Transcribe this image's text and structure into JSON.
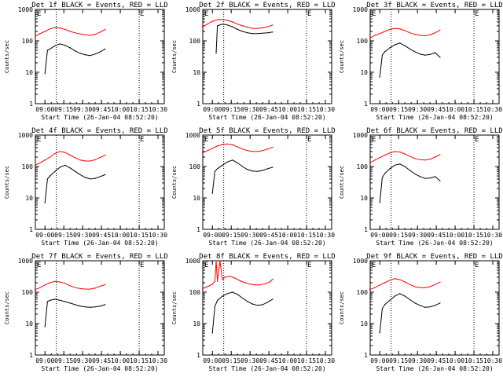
{
  "colors": {
    "events": "#000000",
    "lld": "#ff0000",
    "vline": "#000000"
  },
  "chart_data": [
    {
      "type": "line",
      "title": "Det 1f BLACK = Events, RED = LLD",
      "xlabel": "Start Time (26-Jan-04 08:52:20)",
      "ylabel": "Counts/sec",
      "yscale": "log",
      "ylim": [
        1,
        1000
      ],
      "xticks": [
        "09:00",
        "09:15",
        "09:30",
        "09:45",
        "10:00",
        "10:15",
        "10:30"
      ],
      "yticks": [
        "1",
        "10",
        "100",
        "1000"
      ],
      "flag": "E",
      "dotted_lines_x": [
        "09:09",
        "10:15"
      ],
      "series": [
        {
          "name": "LLD",
          "color": "red",
          "x": [
            "08:52",
            "08:56",
            "09:00",
            "09:04",
            "09:08",
            "09:12",
            "09:16",
            "09:20",
            "09:24",
            "09:28",
            "09:32",
            "09:36",
            "09:40",
            "09:44",
            "09:48"
          ],
          "y": [
            140,
            170,
            200,
            240,
            265,
            255,
            230,
            200,
            180,
            165,
            155,
            150,
            160,
            190,
            230
          ]
        },
        {
          "name": "Events",
          "color": "black",
          "t0": "09:00",
          "x": [
            "09:00",
            "09:02",
            "09:04",
            "09:08",
            "09:12",
            "09:16",
            "09:20",
            "09:24",
            "09:28",
            "09:32",
            "09:36",
            "09:40",
            "09:44",
            "09:48"
          ],
          "y": [
            9,
            50,
            55,
            70,
            80,
            72,
            60,
            48,
            40,
            36,
            34,
            38,
            45,
            55
          ]
        }
      ]
    },
    {
      "type": "line",
      "title": "Det 2f BLACK = Events, RED = LLD",
      "xlabel": "Start Time (26-Jan-04 08:52:20)",
      "ylabel": "Counts/sec",
      "yscale": "log",
      "ylim": [
        1,
        1000
      ],
      "xticks": [
        "09:00",
        "09:15",
        "09:30",
        "09:45",
        "10:00",
        "10:15",
        "10:30"
      ],
      "yticks": [
        "1",
        "10",
        "100",
        "1000"
      ],
      "flag": "E",
      "dotted_lines_x": [
        "09:09",
        "10:15"
      ],
      "series": [
        {
          "name": "LLD",
          "color": "red",
          "x": [
            "08:52",
            "08:56",
            "09:00",
            "09:04",
            "09:08",
            "09:12",
            "09:16",
            "09:20",
            "09:24",
            "09:28",
            "09:32",
            "09:36",
            "09:40",
            "09:44",
            "09:48"
          ],
          "y": [
            280,
            340,
            420,
            470,
            480,
            450,
            400,
            340,
            300,
            270,
            250,
            250,
            260,
            280,
            320
          ]
        },
        {
          "name": "Events",
          "color": "black",
          "t0": "09:03",
          "x": [
            "09:03",
            "09:04",
            "09:08",
            "09:12",
            "09:16",
            "09:20",
            "09:24",
            "09:28",
            "09:32",
            "09:36",
            "09:40",
            "09:44",
            "09:48"
          ],
          "y": [
            40,
            300,
            340,
            320,
            280,
            230,
            200,
            180,
            170,
            170,
            175,
            180,
            190
          ]
        }
      ]
    },
    {
      "type": "line",
      "title": "Det 3f BLACK = Events, RED = LLD",
      "xlabel": "Start Time (26-Jan-04 08:52:20)",
      "ylabel": "Counts/sec",
      "yscale": "log",
      "ylim": [
        1,
        1000
      ],
      "xticks": [
        "09:00",
        "09:15",
        "09:30",
        "09:45",
        "10:00",
        "10:15",
        "10:30"
      ],
      "yticks": [
        "1",
        "10",
        "100",
        "1000"
      ],
      "flag": "E",
      "dotted_lines_x": [
        "09:09",
        "10:15"
      ],
      "series": [
        {
          "name": "LLD",
          "color": "red",
          "x": [
            "08:52",
            "08:56",
            "09:00",
            "09:04",
            "09:08",
            "09:12",
            "09:16",
            "09:20",
            "09:24",
            "09:28",
            "09:32",
            "09:36",
            "09:40",
            "09:44",
            "09:48"
          ],
          "y": [
            120,
            150,
            170,
            200,
            230,
            250,
            240,
            210,
            180,
            160,
            150,
            145,
            155,
            180,
            220
          ]
        },
        {
          "name": "Events",
          "color": "black",
          "t0": "09:00",
          "x": [
            "09:00",
            "09:02",
            "09:04",
            "09:08",
            "09:12",
            "09:16",
            "09:20",
            "09:24",
            "09:28",
            "09:32",
            "09:36",
            "09:40",
            "09:44",
            "09:48"
          ],
          "y": [
            7,
            35,
            45,
            60,
            75,
            85,
            70,
            55,
            45,
            38,
            35,
            37,
            42,
            30
          ]
        }
      ]
    },
    {
      "type": "line",
      "title": "Det 4f BLACK = Events, RED = LLD",
      "xlabel": "Start Time (26-Jan-04 08:52:20)",
      "ylabel": "Counts/sec",
      "yscale": "log",
      "ylim": [
        1,
        1000
      ],
      "xticks": [
        "09:00",
        "09:15",
        "09:30",
        "09:45",
        "10:00",
        "10:15",
        "10:30"
      ],
      "yticks": [
        "1",
        "10",
        "100",
        "1000"
      ],
      "flag": "E",
      "dotted_lines_x": [
        "09:09",
        "10:15"
      ],
      "series": [
        {
          "name": "LLD",
          "color": "red",
          "x": [
            "08:52",
            "08:56",
            "09:00",
            "09:04",
            "09:08",
            "09:12",
            "09:16",
            "09:20",
            "09:24",
            "09:28",
            "09:32",
            "09:36",
            "09:40",
            "09:44",
            "09:48"
          ],
          "y": [
            110,
            130,
            160,
            200,
            260,
            300,
            280,
            230,
            190,
            160,
            150,
            150,
            165,
            195,
            230
          ]
        },
        {
          "name": "Events",
          "color": "black",
          "t0": "09:00",
          "x": [
            "09:00",
            "09:02",
            "09:04",
            "09:08",
            "09:12",
            "09:16",
            "09:20",
            "09:24",
            "09:28",
            "09:32",
            "09:36",
            "09:40",
            "09:44",
            "09:48"
          ],
          "y": [
            7,
            40,
            50,
            70,
            95,
            110,
            90,
            70,
            55,
            45,
            40,
            42,
            48,
            55
          ]
        }
      ]
    },
    {
      "type": "line",
      "title": "Det 5f BLACK = Events, RED = LLD",
      "xlabel": "Start Time (26-Jan-04 08:52:20)",
      "ylabel": "Counts/sec",
      "yscale": "log",
      "ylim": [
        1,
        1000
      ],
      "xticks": [
        "09:00",
        "09:15",
        "09:30",
        "09:45",
        "10:00",
        "10:15",
        "10:30"
      ],
      "yticks": [
        "1",
        "10",
        "100",
        "1000"
      ],
      "flag": "E",
      "dotted_lines_x": [
        "09:09",
        "10:15"
      ],
      "series": [
        {
          "name": "LLD",
          "color": "red",
          "x": [
            "08:52",
            "08:56",
            "09:00",
            "09:04",
            "09:08",
            "09:12",
            "09:16",
            "09:20",
            "09:24",
            "09:28",
            "09:32",
            "09:36",
            "09:40",
            "09:44",
            "09:48"
          ],
          "y": [
            270,
            320,
            380,
            450,
            500,
            520,
            490,
            420,
            360,
            320,
            300,
            300,
            320,
            360,
            410
          ]
        },
        {
          "name": "Events",
          "color": "black",
          "t0": "09:00",
          "x": [
            "09:00",
            "09:02",
            "09:04",
            "09:08",
            "09:12",
            "09:16",
            "09:20",
            "09:24",
            "09:28",
            "09:32",
            "09:36",
            "09:40",
            "09:44",
            "09:48"
          ],
          "y": [
            14,
            70,
            85,
            110,
            140,
            160,
            130,
            100,
            80,
            72,
            70,
            75,
            85,
            95
          ]
        }
      ]
    },
    {
      "type": "line",
      "title": "Det 6f BLACK = Events, RED = LLD",
      "xlabel": "Start Time (26-Jan-04 08:52:20)",
      "ylabel": "Counts/sec",
      "yscale": "log",
      "ylim": [
        1,
        1000
      ],
      "xticks": [
        "09:00",
        "09:15",
        "09:30",
        "09:45",
        "10:00",
        "10:15",
        "10:30"
      ],
      "yticks": [
        "1",
        "10",
        "100",
        "1000"
      ],
      "flag": "E",
      "dotted_lines_x": [
        "09:09",
        "10:15"
      ],
      "series": [
        {
          "name": "LLD",
          "color": "red",
          "x": [
            "08:52",
            "08:56",
            "09:00",
            "09:04",
            "09:08",
            "09:12",
            "09:16",
            "09:20",
            "09:24",
            "09:28",
            "09:32",
            "09:36",
            "09:40",
            "09:44",
            "09:48"
          ],
          "y": [
            130,
            160,
            190,
            230,
            270,
            300,
            290,
            250,
            210,
            180,
            165,
            160,
            170,
            200,
            240
          ]
        },
        {
          "name": "Events",
          "color": "black",
          "t0": "09:00",
          "x": [
            "09:00",
            "09:02",
            "09:04",
            "09:08",
            "09:12",
            "09:16",
            "09:20",
            "09:24",
            "09:28",
            "09:32",
            "09:36",
            "09:40",
            "09:44",
            "09:48"
          ],
          "y": [
            7,
            45,
            60,
            85,
            110,
            120,
            100,
            75,
            58,
            48,
            42,
            43,
            48,
            35
          ]
        }
      ]
    },
    {
      "type": "line",
      "title": "Det 7f BLACK = Events, RED = LLD",
      "xlabel": "Start Time (26-Jan-04 08:52:20)",
      "ylabel": "Counts/sec",
      "yscale": "log",
      "ylim": [
        1,
        1000
      ],
      "xticks": [
        "09:00",
        "09:15",
        "09:30",
        "09:45",
        "10:00",
        "10:15",
        "10:30"
      ],
      "yticks": [
        "1",
        "10",
        "100",
        "1000"
      ],
      "flag": "E",
      "dotted_lines_x": [
        "09:09",
        "10:15"
      ],
      "series": [
        {
          "name": "LLD",
          "color": "red",
          "x": [
            "08:52",
            "08:56",
            "09:00",
            "09:04",
            "09:08",
            "09:12",
            "09:16",
            "09:20",
            "09:24",
            "09:28",
            "09:32",
            "09:36",
            "09:40",
            "09:44",
            "09:48"
          ],
          "y": [
            120,
            140,
            170,
            200,
            220,
            210,
            190,
            160,
            140,
            130,
            125,
            125,
            135,
            155,
            175
          ]
        },
        {
          "name": "Events",
          "color": "black",
          "t0": "09:00",
          "x": [
            "09:00",
            "09:02",
            "09:04",
            "09:08",
            "09:12",
            "09:16",
            "09:20",
            "09:24",
            "09:28",
            "09:32",
            "09:36",
            "09:40",
            "09:44",
            "09:48"
          ],
          "y": [
            8,
            50,
            55,
            60,
            55,
            50,
            45,
            40,
            36,
            34,
            33,
            34,
            36,
            40
          ]
        }
      ]
    },
    {
      "type": "line",
      "title": "Det 8f BLACK = Events, RED = LLD",
      "xlabel": "Start Time (26-Jan-04 08:52:20)",
      "ylabel": "Counts/sec",
      "yscale": "log",
      "ylim": [
        1,
        1000
      ],
      "xticks": [
        "09:00",
        "09:15",
        "09:30",
        "09:45",
        "10:00",
        "10:15",
        "10:30"
      ],
      "yticks": [
        "1",
        "10",
        "100",
        "1000"
      ],
      "flag": "E",
      "dotted_lines_x": [
        "09:09",
        "10:15"
      ],
      "series": [
        {
          "name": "LLD",
          "color": "red",
          "x": [
            "08:52",
            "08:56",
            "09:00",
            "09:02",
            "09:03",
            "09:04",
            "09:06",
            "09:08",
            "09:10",
            "09:14",
            "09:18",
            "09:22",
            "09:26",
            "09:30",
            "09:34",
            "09:38",
            "09:42",
            "09:46",
            "09:48"
          ],
          "y": [
            130,
            150,
            180,
            220,
            1000,
            220,
            1000,
            250,
            300,
            320,
            280,
            230,
            200,
            180,
            170,
            170,
            185,
            215,
            260
          ]
        },
        {
          "name": "Events",
          "color": "black",
          "t0": "09:00",
          "x": [
            "09:00",
            "09:02",
            "09:04",
            "09:08",
            "09:12",
            "09:16",
            "09:20",
            "09:24",
            "09:28",
            "09:32",
            "09:36",
            "09:40",
            "09:44",
            "09:48"
          ],
          "y": [
            5,
            35,
            55,
            75,
            90,
            100,
            85,
            65,
            50,
            42,
            38,
            40,
            48,
            60
          ]
        }
      ]
    },
    {
      "type": "line",
      "title": "Det 9f BLACK = Events, RED = LLD",
      "xlabel": "Start Time (26-Jan-04 08:52:20)",
      "ylabel": "Counts/sec",
      "yscale": "log",
      "ylim": [
        1,
        1000
      ],
      "xticks": [
        "09:00",
        "09:15",
        "09:30",
        "09:45",
        "10:00",
        "10:15",
        "10:30"
      ],
      "yticks": [
        "1",
        "10",
        "100",
        "1000"
      ],
      "flag": "E",
      "dotted_lines_x": [
        "09:09",
        "10:15"
      ],
      "series": [
        {
          "name": "LLD",
          "color": "red",
          "x": [
            "08:52",
            "08:56",
            "09:00",
            "09:04",
            "09:08",
            "09:12",
            "09:16",
            "09:20",
            "09:24",
            "09:28",
            "09:32",
            "09:36",
            "09:40",
            "09:44",
            "09:48"
          ],
          "y": [
            120,
            140,
            170,
            200,
            240,
            270,
            250,
            210,
            175,
            150,
            140,
            140,
            150,
            175,
            210
          ]
        },
        {
          "name": "Events",
          "color": "black",
          "t0": "09:00",
          "x": [
            "09:00",
            "09:02",
            "09:04",
            "09:08",
            "09:12",
            "09:16",
            "09:20",
            "09:24",
            "09:28",
            "09:32",
            "09:36",
            "09:40",
            "09:44",
            "09:48"
          ],
          "y": [
            5,
            30,
            40,
            55,
            75,
            90,
            75,
            58,
            45,
            38,
            33,
            34,
            38,
            45
          ]
        }
      ]
    }
  ]
}
